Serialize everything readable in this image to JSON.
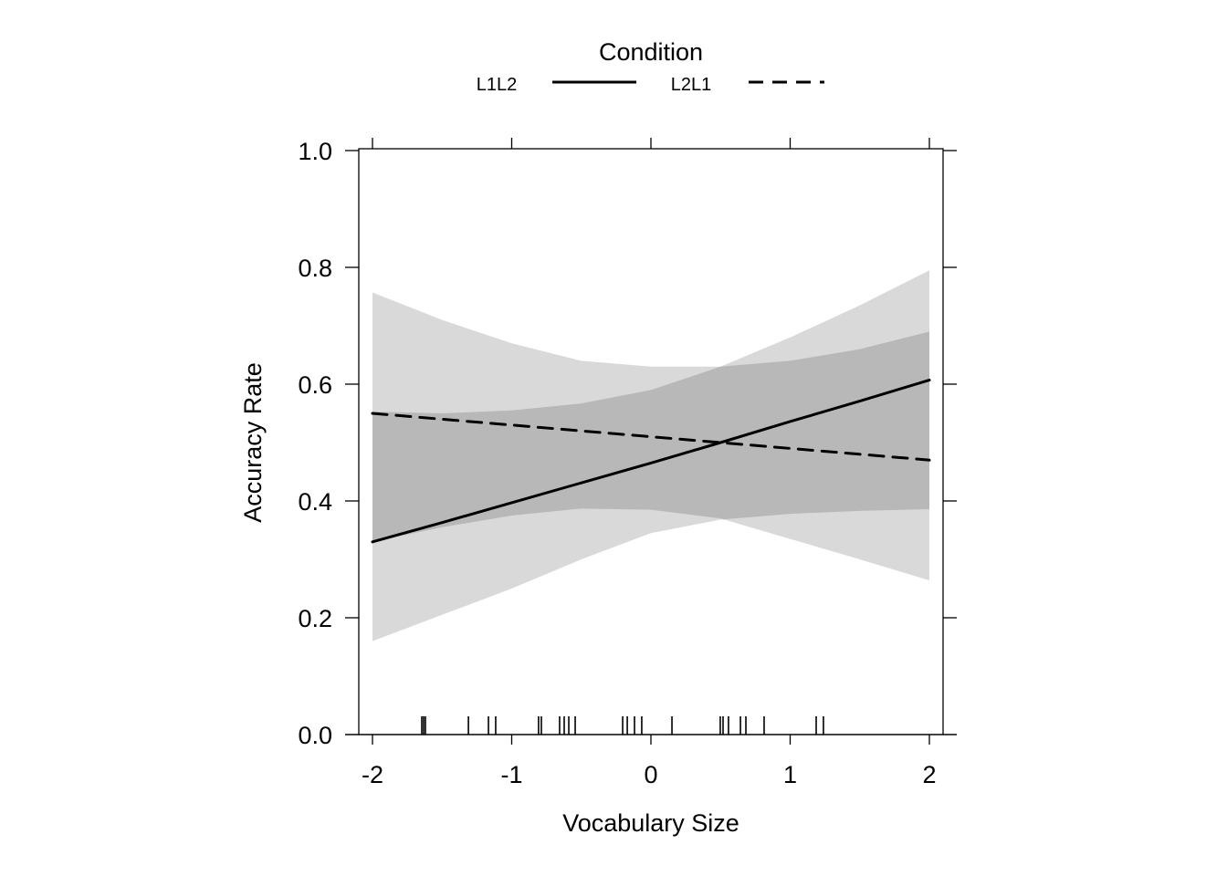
{
  "chart_data": {
    "type": "line",
    "xlabel": "Vocabulary Size",
    "ylabel": "Accuracy Rate",
    "xlim": [
      -2.1,
      2.1
    ],
    "ylim": [
      0,
      1.0
    ],
    "x_ticks": [
      -2,
      -1,
      0,
      1,
      2
    ],
    "x_tick_labels": [
      "-2",
      "-1",
      "0",
      "1",
      "2"
    ],
    "y_ticks": [
      0,
      0.2,
      0.4,
      0.6,
      0.8,
      1.0
    ],
    "y_tick_labels": [
      "0.0",
      "0.2",
      "0.4",
      "0.6",
      "0.8",
      "1.0"
    ],
    "grid": false,
    "legend": {
      "title": "Condition",
      "placement": "top",
      "entries": [
        "L1L2",
        "L2L1"
      ]
    },
    "x": [
      -2,
      -1.5,
      -1,
      -0.5,
      0,
      0.5,
      1,
      1.5,
      2
    ],
    "series": [
      {
        "name": "L1L2",
        "style": "solid",
        "values": [
          0.33,
          0.363,
          0.397,
          0.431,
          0.465,
          0.5,
          0.536,
          0.571,
          0.607
        ],
        "lower": [
          0.16,
          0.205,
          0.25,
          0.3,
          0.345,
          0.368,
          0.378,
          0.383,
          0.386
        ],
        "upper": [
          0.553,
          0.55,
          0.555,
          0.567,
          0.59,
          0.63,
          0.68,
          0.735,
          0.795
        ]
      },
      {
        "name": "L2L1",
        "style": "dashed",
        "values": [
          0.55,
          0.54,
          0.53,
          0.52,
          0.51,
          0.5,
          0.49,
          0.48,
          0.47
        ],
        "lower": [
          0.33,
          0.355,
          0.375,
          0.387,
          0.385,
          0.37,
          0.335,
          0.3,
          0.264
        ],
        "upper": [
          0.757,
          0.71,
          0.67,
          0.64,
          0.63,
          0.63,
          0.64,
          0.66,
          0.69
        ]
      }
    ],
    "rug": [
      -1.646,
      -1.633,
      -1.62,
      -1.311,
      -1.167,
      -1.115,
      -0.807,
      -0.787,
      -0.656,
      -0.623,
      -0.59,
      -0.544,
      -0.203,
      -0.17,
      -0.118,
      -0.066,
      0.151,
      0.498,
      0.518,
      0.557,
      0.643,
      0.682,
      0.813,
      1.187,
      1.239
    ],
    "band_color": "#000000"
  }
}
